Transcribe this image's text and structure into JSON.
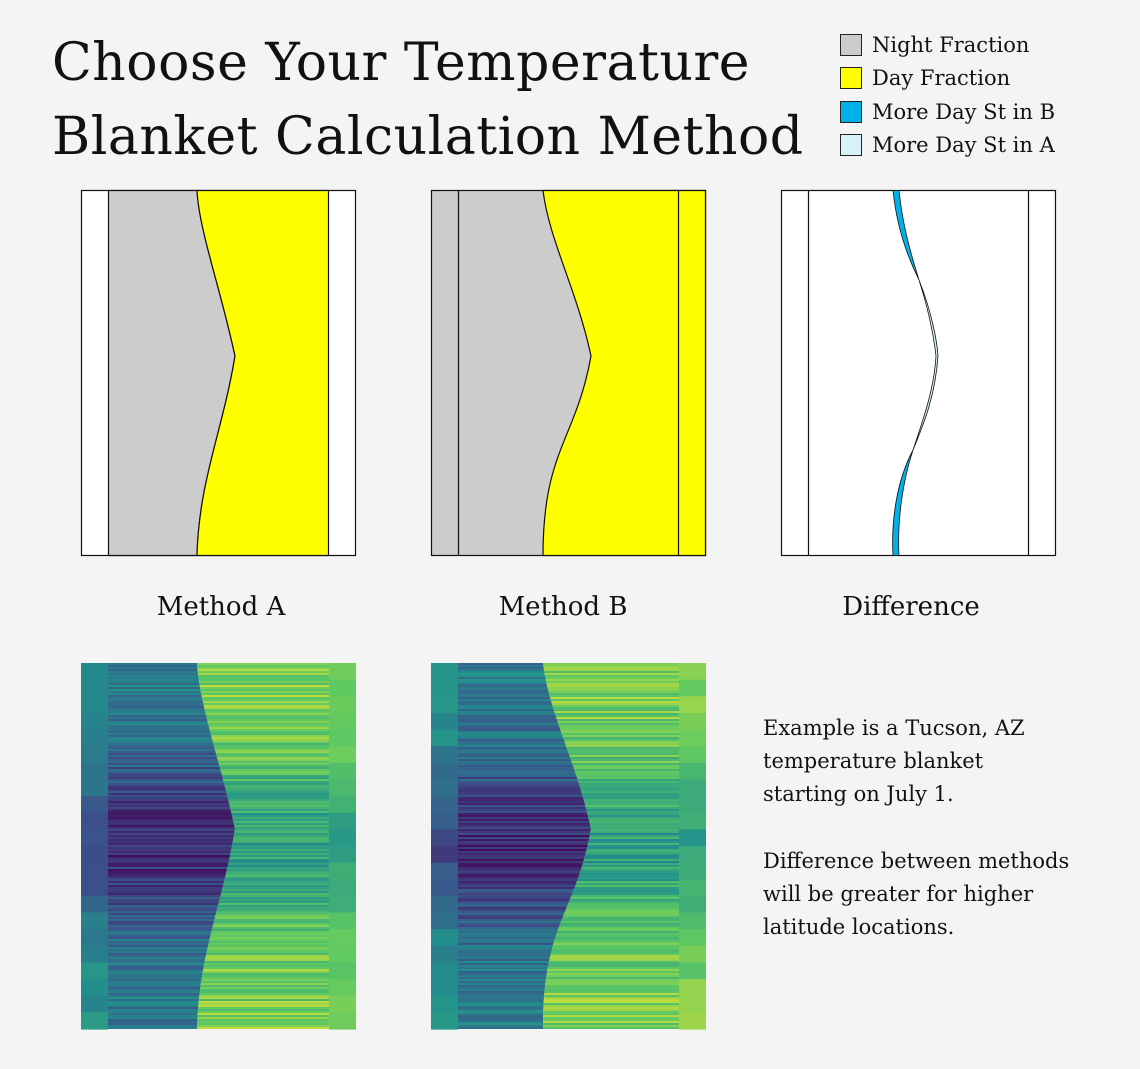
{
  "title": {
    "line1": "Choose Your Temperature",
    "line2": "Blanket Calculation Method"
  },
  "legend": [
    {
      "label": "Night Fraction",
      "color": "#cccccc"
    },
    {
      "label": "Day Fraction",
      "color": "#ffff00"
    },
    {
      "label": "More Day St in B",
      "color": "#00b0e8"
    },
    {
      "label": "More Day St in A",
      "color": "#d6f2fa"
    }
  ],
  "captions": {
    "a": "Method A",
    "b": "Method B",
    "diff": "Difference"
  },
  "notes": {
    "p1": "Example is a Tucson, AZ temperature blanket starting on July 1.",
    "p2": "Difference between methods will be greater for higher latitude locations."
  },
  "chart_data": [
    {
      "type": "area",
      "name": "Method A",
      "series": [
        {
          "name": "Night Fraction",
          "color": "#cccccc"
        },
        {
          "name": "Day Fraction",
          "color": "#ffff00"
        }
      ],
      "day_start_fraction": [
        0.4,
        0.41,
        0.46,
        0.54,
        0.58,
        0.57,
        0.52,
        0.45,
        0.41,
        0.4
      ],
      "rows": 10,
      "border_fraction": 0.1
    },
    {
      "type": "area",
      "name": "Method B",
      "series": [
        {
          "name": "Night Fraction",
          "color": "#cccccc"
        },
        {
          "name": "Day Fraction",
          "color": "#ffff00"
        }
      ],
      "day_start_fraction": [
        0.41,
        0.43,
        0.49,
        0.57,
        0.58,
        0.55,
        0.48,
        0.42,
        0.4,
        0.4
      ],
      "rows": 10,
      "border_fraction": 0.1
    },
    {
      "type": "area",
      "name": "Difference",
      "series": [
        {
          "name": "More Day St in B",
          "color": "#00b0e8"
        },
        {
          "name": "More Day St in A",
          "color": "#d6f2fa"
        }
      ]
    },
    {
      "type": "heatmap",
      "name": "Method A blanket",
      "colormap": [
        "#440154",
        "#3b528b",
        "#21918c",
        "#5ec962",
        "#fde725"
      ]
    },
    {
      "type": "heatmap",
      "name": "Method B blanket",
      "colormap": [
        "#440154",
        "#3b528b",
        "#21918c",
        "#5ec962",
        "#fde725"
      ]
    }
  ]
}
